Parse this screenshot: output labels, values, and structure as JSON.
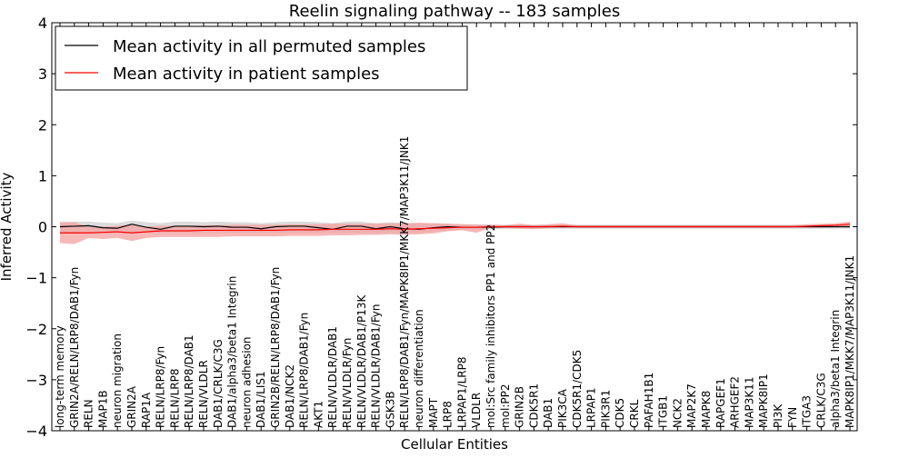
{
  "chart_data": {
    "type": "line",
    "title": "Reelin signaling pathway -- 183 samples",
    "xlabel": "Cellular Entities",
    "ylabel": "Inferred Activity",
    "ylim": [
      -4,
      4
    ],
    "yticks": [
      -4,
      -3,
      -2,
      -1,
      0,
      1,
      2,
      3,
      4
    ],
    "ytick_labels": [
      "−4",
      "−3",
      "−2",
      "−1",
      "0",
      "1",
      "2",
      "3",
      "4"
    ],
    "legend_position": "top-left",
    "categories": [
      "long-term memory",
      "GRIN2A/RELN/LRP8/DAB1/Fyn",
      "RELN",
      "MAP1B",
      "neuron migration",
      "GRIN2A",
      "RAP1A",
      "RELN/LRP8/Fyn",
      "RELN/LRP8",
      "RELN/LRP8/DAB1",
      "RELN/VLDLR",
      "DAB1/CRLK/C3G",
      "DAB1/alpha3/beta1 Integrin",
      "neuron adhesion",
      "DAB1/LIS1",
      "GRIN2B/RELN/LRP8/DAB1/Fyn",
      "DAB1/NCK2",
      "RELN/LRP8/DAB1/Fyn",
      "AKT1",
      "RELN/VLDLR/DAB1",
      "RELN/VLDLR/Fyn",
      "RELN/VLDLR/DAB1/P13K",
      "RELN/VLDLR/DAB1/Fyn",
      "GSK3B",
      "RELN/LRP8/DAB1/Fyn/MAPK8IP1/MKK7/MAP3K11/JNK1",
      "neuron differentiation",
      "MAPT",
      "LRP8",
      "LRPAP1/LRP8",
      "VLDLR",
      "mol:Src family inhibitors PP1 and PP2",
      "mol:PP2",
      "GRIN2B",
      "CDK5R1",
      "DAB1",
      "PIK3CA",
      "CDK5R1/CDK5",
      "LRPAP1",
      "PIK3R1",
      "CDK5",
      "CRKL",
      "PAFAH1B1",
      "ITGB1",
      "NCK2",
      "MAP2K7",
      "MAPK8",
      "RAPGEF1",
      "ARHGEF2",
      "MAP3K11",
      "MAPK8IP1",
      "PI3K",
      "FYN",
      "ITGA3",
      "CRLK/C3G",
      "alpha3/beta1 Integrin",
      "MAPK8IP1/MKK7/MAP3K11/JNK1"
    ],
    "series": [
      {
        "name": "Mean activity in all permuted samples",
        "color": "#000000",
        "band_color": "#bdbdbd",
        "values": [
          0.0,
          0.01,
          0.02,
          -0.02,
          -0.03,
          0.05,
          -0.01,
          -0.05,
          0.01,
          0.01,
          0.0,
          0.01,
          -0.01,
          -0.01,
          -0.04,
          0.0,
          0.01,
          0.01,
          -0.02,
          -0.05,
          0.01,
          0.01,
          -0.04,
          0.0,
          -0.04,
          -0.05,
          -0.02,
          0.0,
          -0.01,
          -0.01,
          -0.01,
          0.0,
          0.0,
          0.0,
          0.0,
          0.0,
          0.0,
          0.0,
          0.0,
          0.0,
          0.0,
          0.0,
          0.0,
          0.0,
          0.0,
          0.0,
          0.0,
          0.0,
          0.0,
          0.0,
          0.0,
          0.0,
          0.0,
          0.0,
          0.0,
          0.0
        ],
        "lower": [
          -0.12,
          -0.12,
          -0.12,
          -0.12,
          -0.12,
          -0.12,
          -0.12,
          -0.12,
          -0.12,
          -0.12,
          -0.12,
          -0.12,
          -0.12,
          -0.12,
          -0.12,
          -0.12,
          -0.12,
          -0.12,
          -0.12,
          -0.12,
          -0.12,
          -0.12,
          -0.12,
          -0.12,
          -0.12,
          -0.12,
          -0.1,
          -0.07,
          -0.06,
          -0.05,
          -0.05,
          -0.04,
          -0.04,
          -0.04,
          -0.04,
          -0.04,
          -0.04,
          -0.04,
          -0.04,
          -0.04,
          -0.04,
          -0.04,
          -0.04,
          -0.04,
          -0.04,
          -0.04,
          -0.04,
          -0.04,
          -0.04,
          -0.04,
          -0.04,
          -0.04,
          -0.04,
          -0.04,
          -0.04,
          -0.04
        ],
        "upper": [
          0.1,
          0.1,
          0.1,
          0.08,
          0.07,
          0.12,
          0.09,
          0.07,
          0.1,
          0.1,
          0.09,
          0.1,
          0.09,
          0.09,
          0.07,
          0.09,
          0.1,
          0.1,
          0.09,
          0.07,
          0.1,
          0.1,
          0.07,
          0.09,
          0.07,
          0.06,
          0.07,
          0.06,
          0.05,
          0.05,
          0.04,
          0.04,
          0.04,
          0.04,
          0.04,
          0.04,
          0.04,
          0.04,
          0.04,
          0.04,
          0.04,
          0.04,
          0.04,
          0.04,
          0.04,
          0.04,
          0.04,
          0.04,
          0.04,
          0.04,
          0.04,
          0.04,
          0.04,
          0.04,
          0.04,
          0.04
        ]
      },
      {
        "name": "Mean activity in patient samples",
        "color": "#ff0000",
        "band_color": "#f4a0a0",
        "values": [
          -0.12,
          -0.12,
          -0.12,
          -0.11,
          -0.1,
          -0.12,
          -0.1,
          -0.08,
          -0.08,
          -0.08,
          -0.07,
          -0.07,
          -0.07,
          -0.07,
          -0.07,
          -0.07,
          -0.06,
          -0.06,
          -0.06,
          -0.05,
          -0.05,
          -0.05,
          -0.05,
          -0.04,
          -0.05,
          -0.04,
          -0.03,
          -0.02,
          -0.01,
          -0.01,
          0.0,
          0.0,
          0.0,
          0.0,
          0.0,
          0.01,
          0.0,
          0.0,
          0.0,
          0.0,
          0.0,
          0.0,
          0.0,
          0.0,
          0.0,
          0.0,
          0.0,
          0.0,
          0.0,
          0.0,
          0.0,
          0.0,
          0.01,
          0.02,
          0.03,
          0.05
        ],
        "lower": [
          -0.32,
          -0.34,
          -0.22,
          -0.24,
          -0.22,
          -0.28,
          -0.22,
          -0.2,
          -0.2,
          -0.2,
          -0.2,
          -0.2,
          -0.19,
          -0.19,
          -0.19,
          -0.19,
          -0.18,
          -0.18,
          -0.18,
          -0.17,
          -0.17,
          -0.16,
          -0.16,
          -0.15,
          -0.16,
          -0.15,
          -0.13,
          -0.09,
          -0.07,
          -0.12,
          -0.02,
          -0.03,
          -0.04,
          -0.05,
          -0.03,
          -0.02,
          -0.02,
          -0.02,
          -0.02,
          -0.02,
          -0.02,
          -0.02,
          -0.02,
          -0.02,
          -0.02,
          -0.02,
          -0.02,
          -0.02,
          -0.02,
          -0.02,
          -0.02,
          -0.02,
          -0.02,
          -0.02,
          -0.01,
          0.0
        ],
        "upper": [
          0.08,
          0.09,
          0.0,
          0.0,
          0.02,
          0.04,
          0.0,
          0.02,
          0.02,
          0.02,
          0.03,
          0.03,
          0.04,
          0.04,
          0.04,
          0.04,
          0.05,
          0.05,
          0.05,
          0.06,
          0.06,
          0.06,
          0.06,
          0.07,
          0.07,
          0.08,
          0.07,
          0.06,
          0.05,
          0.04,
          0.04,
          0.03,
          0.06,
          0.03,
          0.05,
          0.07,
          0.03,
          0.03,
          0.03,
          0.03,
          0.03,
          0.03,
          0.03,
          0.03,
          0.03,
          0.03,
          0.03,
          0.03,
          0.03,
          0.03,
          0.03,
          0.03,
          0.05,
          0.06,
          0.07,
          0.1
        ]
      }
    ]
  }
}
